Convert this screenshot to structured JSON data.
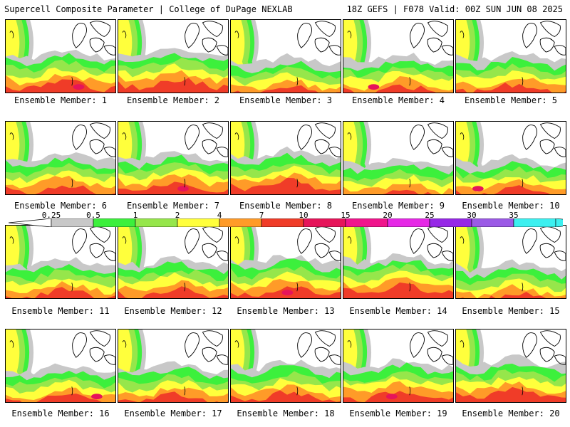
{
  "header": {
    "title": "Supercell Composite Parameter | College of DuPage NEXLAB",
    "run": "18Z GEFS | F078 Valid: 00Z SUN JUN 08 2025"
  },
  "legend": {
    "ticks": [
      "0.25",
      "0.5",
      "1",
      "2",
      "4",
      "7",
      "10",
      "15",
      "20",
      "25",
      "30",
      "35"
    ],
    "colors": [
      "#c8c8c8",
      "#3cf03c",
      "#96e64b",
      "#ffff3c",
      "#ff9b28",
      "#f03c28",
      "#e6145a",
      "#f0148c",
      "#e628e6",
      "#9628e6",
      "#9b5ae6",
      "#3cf0f0"
    ]
  },
  "members": [
    {
      "label": "Ensemble Member: 1"
    },
    {
      "label": "Ensemble Member: 2"
    },
    {
      "label": "Ensemble Member: 3"
    },
    {
      "label": "Ensemble Member: 4"
    },
    {
      "label": "Ensemble Member: 5"
    },
    {
      "label": "Ensemble Member: 6"
    },
    {
      "label": "Ensemble Member: 7"
    },
    {
      "label": "Ensemble Member: 8"
    },
    {
      "label": "Ensemble Member: 9"
    },
    {
      "label": "Ensemble Member: 10"
    },
    {
      "label": "Ensemble Member: 11"
    },
    {
      "label": "Ensemble Member: 12"
    },
    {
      "label": "Ensemble Member: 13"
    },
    {
      "label": "Ensemble Member: 14"
    },
    {
      "label": "Ensemble Member: 15"
    },
    {
      "label": "Ensemble Member: 16"
    },
    {
      "label": "Ensemble Member: 17"
    },
    {
      "label": "Ensemble Member: 18"
    },
    {
      "label": "Ensemble Member: 19"
    },
    {
      "label": "Ensemble Member: 20"
    }
  ]
}
